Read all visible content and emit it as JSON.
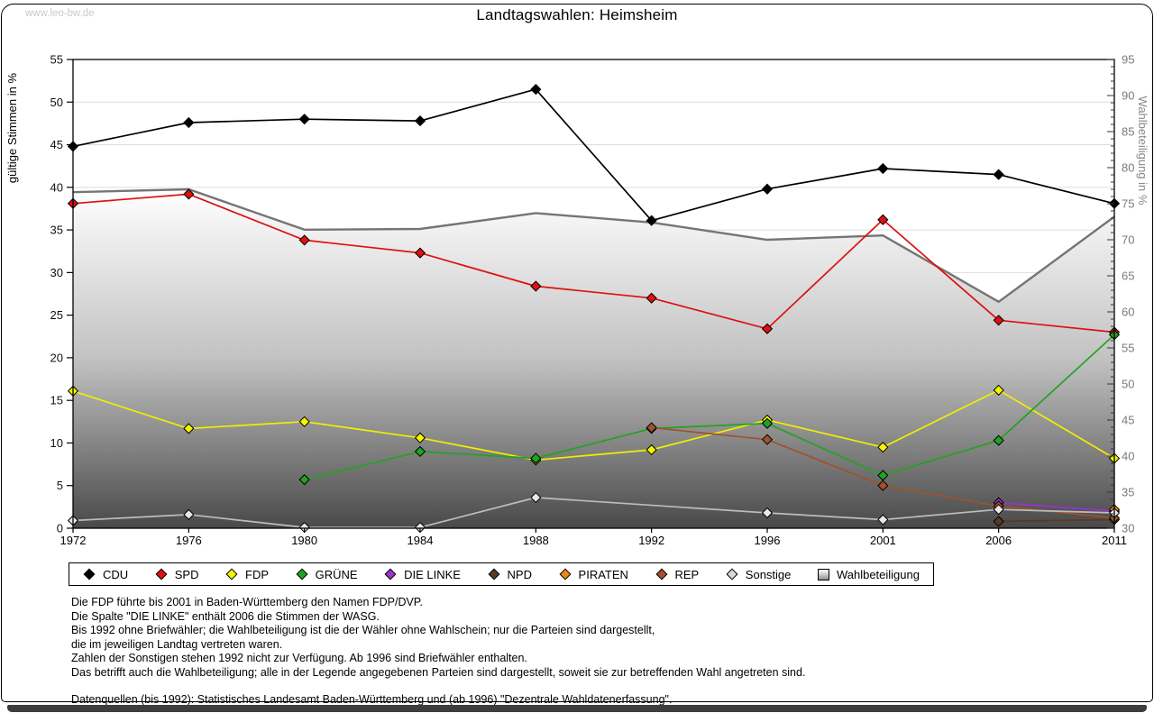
{
  "watermark": "www.leo-bw.de",
  "title": "Landtagswahlen: Heimsheim",
  "chart_data": {
    "type": "line",
    "title": "Landtagswahlen: Heimsheim",
    "x_categories": [
      "1972",
      "1976",
      "1980",
      "1984",
      "1988",
      "1992",
      "1996",
      "2001",
      "2006",
      "2011"
    ],
    "ylabel_left": "gültige Stimmen in %",
    "ylabel_right": "Wahlbeteiligung in %",
    "ylim_left": [
      0,
      55
    ],
    "ylim_right": [
      30,
      95
    ],
    "ytick_step_left": 5,
    "ytick_step_right": 5,
    "ytick_minor_step_right": 1,
    "grid": true,
    "legend_position": "bottom",
    "marker": "diamond",
    "series": [
      {
        "name": "CDU",
        "role": "party",
        "axis": "left",
        "color": "#000000",
        "marker_fill": "#000000",
        "values": [
          44.8,
          47.6,
          48.0,
          47.8,
          51.5,
          36.1,
          39.8,
          42.2,
          41.5,
          38.1
        ]
      },
      {
        "name": "SPD",
        "role": "party",
        "axis": "left",
        "color": "#dd1111",
        "marker_fill": "#dd1111",
        "values": [
          38.1,
          39.2,
          33.8,
          32.3,
          28.4,
          27.0,
          23.4,
          36.2,
          24.4,
          23.0
        ]
      },
      {
        "name": "FDP",
        "role": "party",
        "axis": "left",
        "color": "#f0ef00",
        "marker_fill": "#f5f500",
        "values": [
          16.1,
          11.7,
          12.5,
          10.6,
          8.0,
          9.2,
          12.7,
          9.5,
          16.2,
          8.2
        ]
      },
      {
        "name": "GRÜNE",
        "role": "party",
        "axis": "left",
        "color": "#21a321",
        "marker_fill": "#21a321",
        "values": [
          null,
          null,
          5.7,
          9.0,
          8.2,
          11.7,
          12.3,
          6.2,
          10.3,
          22.7
        ]
      },
      {
        "name": "DIE LINKE",
        "role": "party",
        "axis": "left",
        "color": "#9933cc",
        "marker_fill": "#9933cc",
        "values": [
          null,
          null,
          null,
          null,
          null,
          null,
          null,
          null,
          3.0,
          2.0
        ]
      },
      {
        "name": "NPD",
        "role": "party",
        "axis": "left",
        "color": "#5b3a1e",
        "marker_fill": "#5b3a1e",
        "values": [
          null,
          null,
          null,
          null,
          null,
          null,
          null,
          null,
          0.8,
          1.0
        ]
      },
      {
        "name": "PIRATEN",
        "role": "party",
        "axis": "left",
        "color": "#ee8811",
        "marker_fill": "#ee8811",
        "values": [
          null,
          null,
          null,
          null,
          null,
          null,
          null,
          null,
          null,
          2.2
        ]
      },
      {
        "name": "REP",
        "role": "party",
        "axis": "left",
        "color": "#a0522d",
        "marker_fill": "#a0522d",
        "values": [
          null,
          null,
          null,
          null,
          null,
          11.8,
          10.4,
          5.0,
          2.6,
          1.2
        ]
      },
      {
        "name": "Sonstige",
        "role": "party",
        "axis": "left",
        "color": "#bcbcbc",
        "marker_fill": "#e8e8e8",
        "connect_gaps": true,
        "values": [
          0.9,
          1.6,
          0.1,
          0.1,
          3.6,
          null,
          1.8,
          1.0,
          2.2,
          1.8
        ]
      },
      {
        "name": "Wahlbeteiligung",
        "role": "turnout",
        "axis": "right",
        "color": "#757575",
        "area": true,
        "values": [
          76.6,
          77.0,
          71.4,
          71.5,
          73.7,
          72.4,
          70.0,
          70.6,
          61.4,
          73.2
        ]
      }
    ]
  },
  "legend": {
    "items": [
      {
        "label": "CDU",
        "swatch": "diamond",
        "color": "#000000"
      },
      {
        "label": "SPD",
        "swatch": "diamond",
        "color": "#dd1111"
      },
      {
        "label": "FDP",
        "swatch": "diamond",
        "color": "#f5f500"
      },
      {
        "label": "GRÜNE",
        "swatch": "diamond",
        "color": "#21a321"
      },
      {
        "label": "DIE LINKE",
        "swatch": "diamond",
        "color": "#9933cc"
      },
      {
        "label": "NPD",
        "swatch": "diamond",
        "color": "#5b3a1e"
      },
      {
        "label": "PIRATEN",
        "swatch": "diamond",
        "color": "#ee8811"
      },
      {
        "label": "REP",
        "swatch": "diamond",
        "color": "#a0522d"
      },
      {
        "label": "Sonstige",
        "swatch": "diamond",
        "color": "#d8d8d8"
      },
      {
        "label": "Wahlbeteiligung",
        "swatch": "gradient-square",
        "color": "#9a9a9a"
      }
    ]
  },
  "footnotes": {
    "lines": [
      "Die FDP führte bis 2001 in Baden-Württemberg den Namen FDP/DVP.",
      "Die Spalte \"DIE LINKE\" enthält 2006 die Stimmen der WASG.",
      "Bis 1992 ohne Briefwähler; die Wahlbeteiligung ist die der Wähler ohne Wahlschein; nur die Parteien sind dargestellt,",
      "die im jeweiligen Landtag vertreten waren.",
      "Zahlen der Sonstigen stehen 1992 nicht zur Verfügung. Ab 1996 sind Briefwähler enthalten.",
      "Das betrifft auch die Wahlbeteiligung; alle in der Legende angegebenen Parteien sind dargestellt, soweit sie zur betreffenden Wahl angetreten sind."
    ],
    "source": "Datenquellen (bis 1992): Statistisches Landesamt Baden-Württemberg und (ab 1996) \"Dezentrale Wahldatenerfassung\"."
  }
}
